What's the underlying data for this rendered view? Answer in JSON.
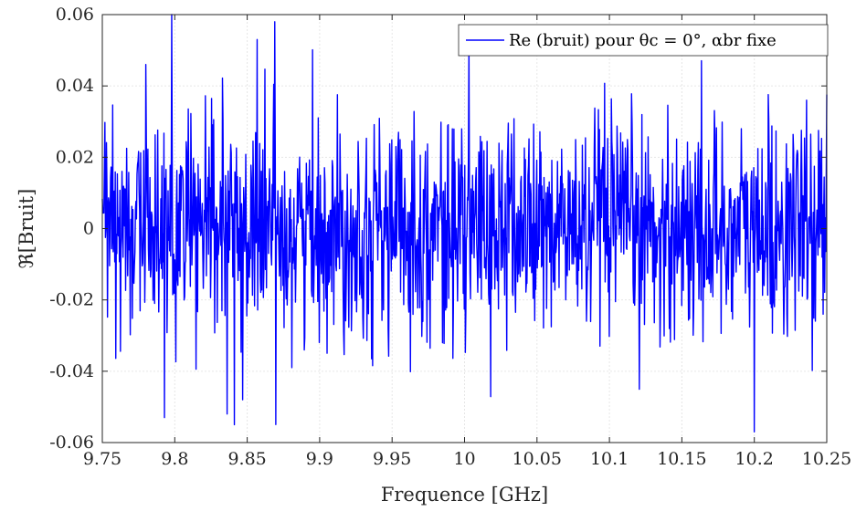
{
  "chart_data": {
    "type": "line",
    "xlabel": "Frequence [GHz]",
    "ylabel": "ℜ[Bruit]",
    "xlim": [
      9.75,
      10.25
    ],
    "ylim": [
      -0.06,
      0.06
    ],
    "x_ticks": [
      "9.75",
      "9.8",
      "9.85",
      "9.9",
      "9.95",
      "10",
      "10.05",
      "10.1",
      "10.15",
      "10.2",
      "10.25"
    ],
    "y_ticks": [
      "0.06",
      "0.04",
      "0.02",
      "0",
      "-0.02",
      "-0.04",
      "-0.06"
    ],
    "grid": true,
    "legend_position": "top-right",
    "colors": {
      "series": "#0000ff",
      "grid": "#e6e6e6",
      "axis": "#262626"
    },
    "series": [
      {
        "name": "Re (bruit) pour θc = 0°, αbr fixe",
        "x_range": [
          9.75,
          10.25
        ],
        "n_points": 1400,
        "std": 0.015,
        "min": -0.057,
        "max": 0.06,
        "peaks": [
          {
            "x": 9.798,
            "y": 0.06
          },
          {
            "x": 9.869,
            "y": 0.058
          },
          {
            "x": 9.841,
            "y": -0.055
          },
          {
            "x": 10.2,
            "y": -0.057
          },
          {
            "x": 9.793,
            "y": -0.053
          },
          {
            "x": 9.836,
            "y": -0.052
          },
          {
            "x": 9.847,
            "y": -0.048
          },
          {
            "x": 9.857,
            "y": 0.053
          },
          {
            "x": 9.78,
            "y": 0.046
          }
        ]
      }
    ]
  }
}
